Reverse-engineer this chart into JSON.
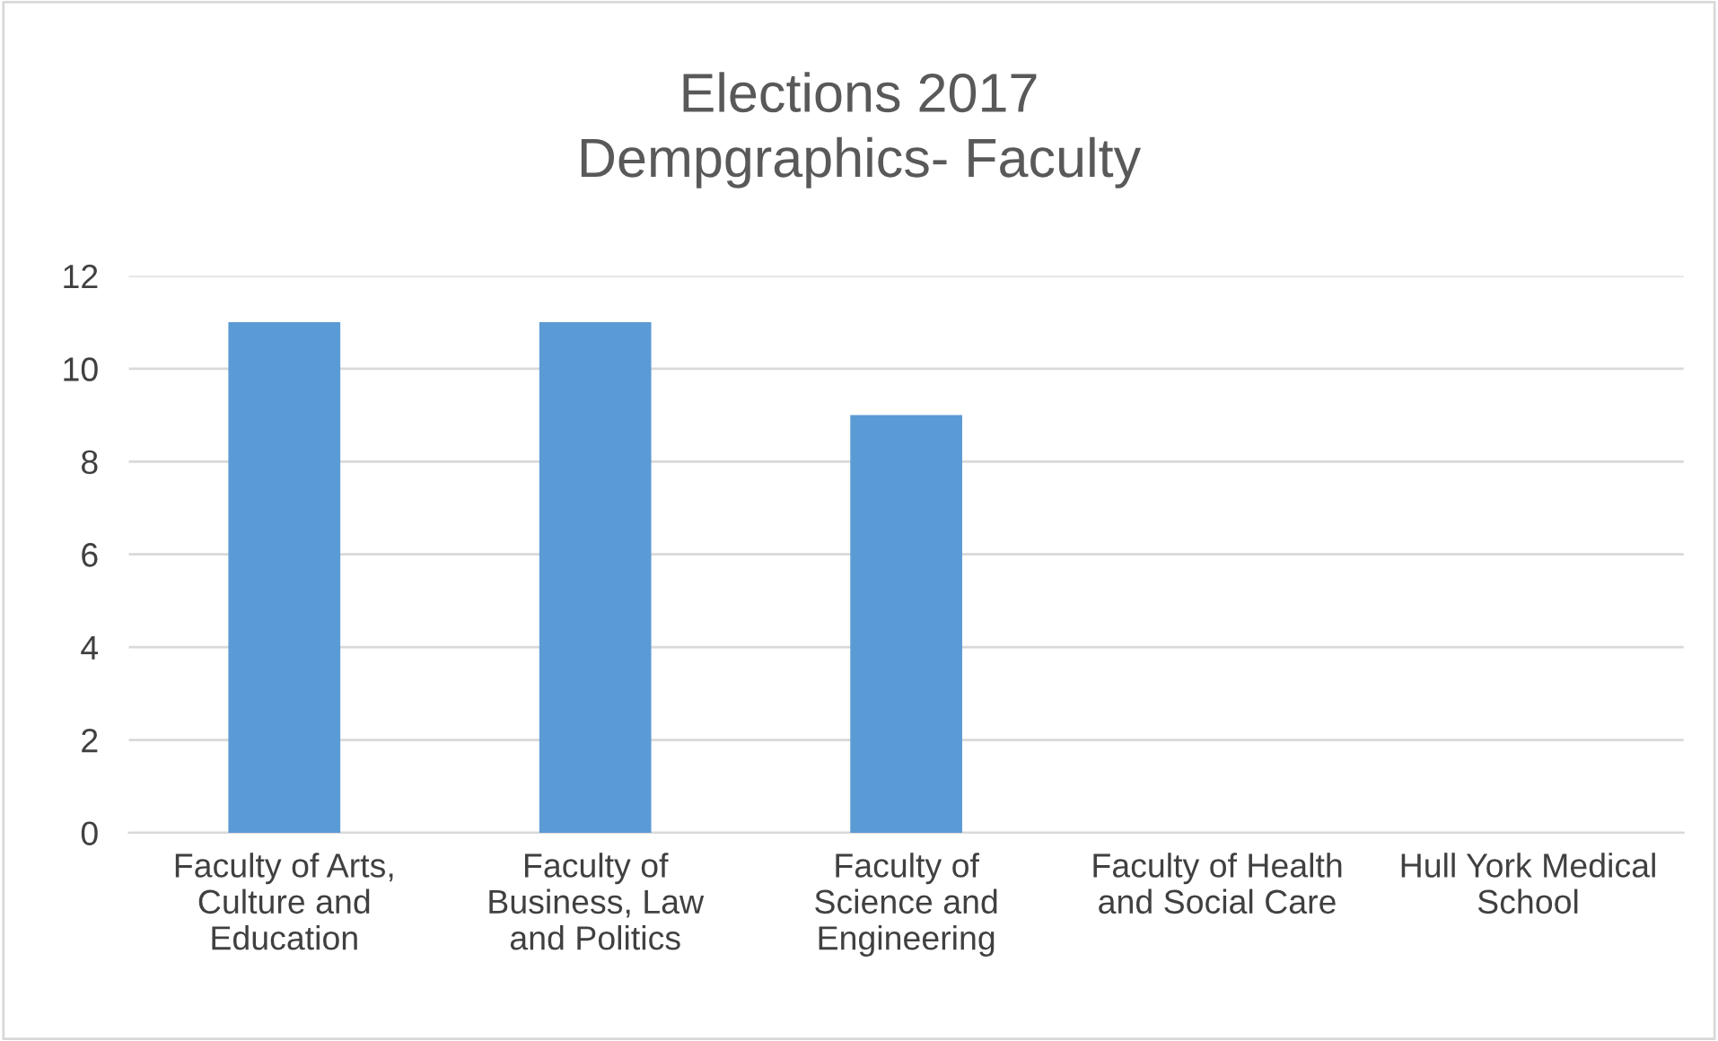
{
  "chart_data": {
    "type": "bar",
    "title": "Elections 2017\nDempgraphics- Faculty",
    "categories": [
      "Faculty of Arts,\nCulture and\nEducation",
      "Faculty of\nBusiness, Law\nand Politics",
      "Faculty of\nScience and\nEngineering",
      "Faculty of Health\nand Social Care",
      "Hull York Medical\nSchool"
    ],
    "values": [
      11,
      11,
      9,
      0,
      0
    ],
    "color": "#5b9bd5",
    "ylim": [
      0,
      12
    ],
    "yticks": [
      0,
      2,
      4,
      6,
      8,
      10,
      12
    ],
    "grid": "y",
    "legend": false
  }
}
